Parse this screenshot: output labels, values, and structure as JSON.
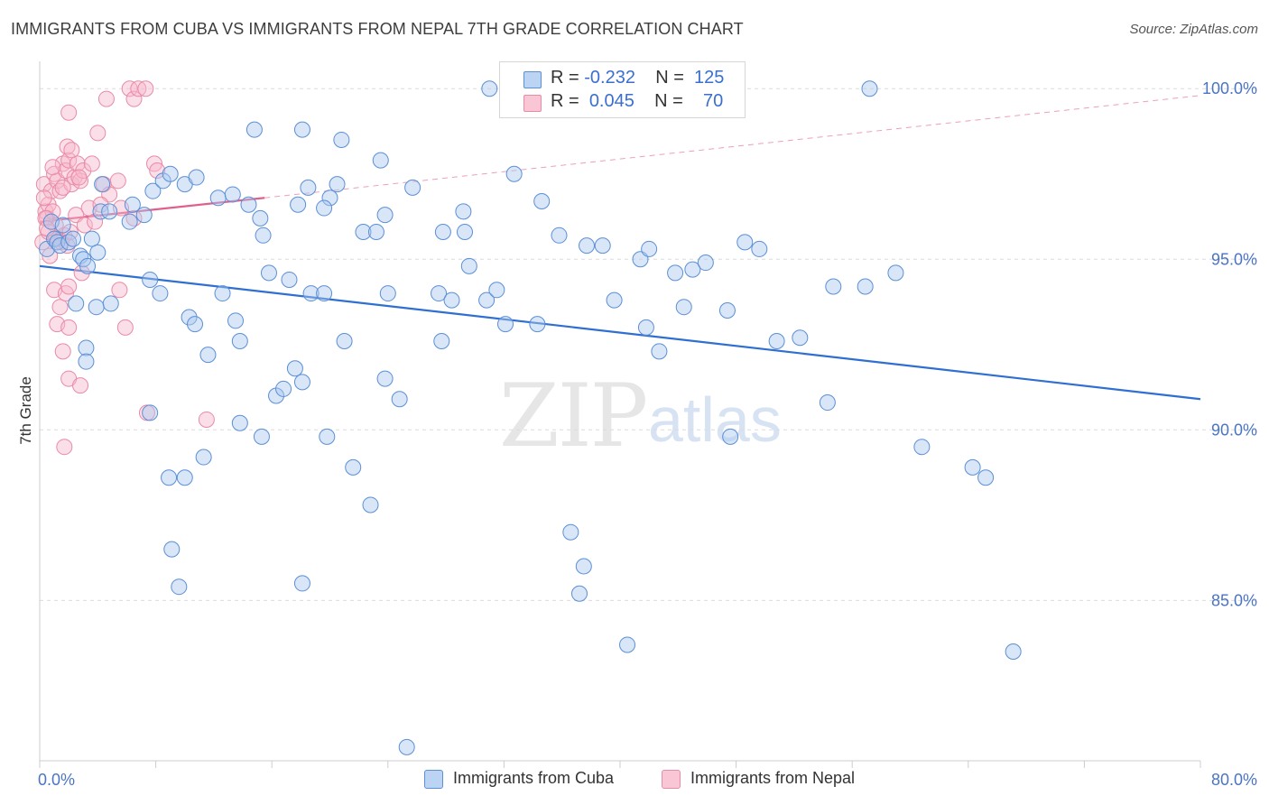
{
  "header": {
    "title": "IMMIGRANTS FROM CUBA VS IMMIGRANTS FROM NEPAL 7TH GRADE CORRELATION CHART",
    "source": "Source: ZipAtlas.com"
  },
  "watermark": {
    "zip": "ZIP",
    "atlas": "atlas"
  },
  "legend": {
    "rows": [
      {
        "r_label": "R = ",
        "r_value": "-0.232",
        "n_label": "N = ",
        "n_value": "125"
      },
      {
        "r_label": "R = ",
        "r_value": "0.045",
        "n_label": "N = ",
        "n_value": "70"
      }
    ]
  },
  "bottom_legend": {
    "cuba": "Immigrants from Cuba",
    "nepal": "Immigrants from Nepal"
  },
  "colors": {
    "cuba_fill": "#a9c8f0",
    "cuba_stroke": "#5b8fd6",
    "cuba_line": "#2f6fd1",
    "nepal_fill": "#f7b9cb",
    "nepal_stroke": "#e98aa6",
    "nepal_line": "#e0608c",
    "tick_text": "#4a74c4",
    "grid": "#dcdcdc"
  },
  "chart_data": {
    "type": "scatter",
    "title": "IMMIGRANTS FROM CUBA VS IMMIGRANTS FROM NEPAL 7TH GRADE CORRELATION CHART",
    "xlabel": "",
    "ylabel": "7th Grade",
    "xlim": [
      0,
      80
    ],
    "ylim": [
      80.3,
      100.8
    ],
    "x_tick_labels": [
      "0.0%",
      "80.0%"
    ],
    "y_ticks": [
      85,
      90,
      95,
      100
    ],
    "y_tick_labels": [
      "85.0%",
      "90.0%",
      "95.0%",
      "100.0%"
    ],
    "grid": true,
    "series": [
      {
        "name": "Immigrants from Cuba",
        "R": -0.232,
        "N": 125,
        "trend": {
          "x": [
            0,
            80
          ],
          "y": [
            94.8,
            90.9
          ],
          "style": "solid"
        },
        "points": [
          [
            0.5,
            95.3
          ],
          [
            0.8,
            96.1
          ],
          [
            1.0,
            95.6
          ],
          [
            1.2,
            95.5
          ],
          [
            1.4,
            95.4
          ],
          [
            1.6,
            96.0
          ],
          [
            2.0,
            95.5
          ],
          [
            2.3,
            95.6
          ],
          [
            2.8,
            95.1
          ],
          [
            3.0,
            95.0
          ],
          [
            3.3,
            94.8
          ],
          [
            3.6,
            95.6
          ],
          [
            4.0,
            95.2
          ],
          [
            4.2,
            96.4
          ],
          [
            4.8,
            96.4
          ],
          [
            4.3,
            97.2
          ],
          [
            6.2,
            96.1
          ],
          [
            6.4,
            96.6
          ],
          [
            7.2,
            96.3
          ],
          [
            7.8,
            97.0
          ],
          [
            8.5,
            97.3
          ],
          [
            9.0,
            97.5
          ],
          [
            10.0,
            97.2
          ],
          [
            10.8,
            97.4
          ],
          [
            12.3,
            96.8
          ],
          [
            13.3,
            96.9
          ],
          [
            14.4,
            96.6
          ],
          [
            15.2,
            96.2
          ],
          [
            15.4,
            95.7
          ],
          [
            14.8,
            98.8
          ],
          [
            17.8,
            96.6
          ],
          [
            18.1,
            98.8
          ],
          [
            18.5,
            97.1
          ],
          [
            20.0,
            96.8
          ],
          [
            20.5,
            97.2
          ],
          [
            19.6,
            96.5
          ],
          [
            20.8,
            98.5
          ],
          [
            22.3,
            95.8
          ],
          [
            23.2,
            95.8
          ],
          [
            23.8,
            96.3
          ],
          [
            23.5,
            97.9
          ],
          [
            25.7,
            97.1
          ],
          [
            27.8,
            95.8
          ],
          [
            29.3,
            95.8
          ],
          [
            29.2,
            96.4
          ],
          [
            29.6,
            94.8
          ],
          [
            32.7,
            97.5
          ],
          [
            31.0,
            100.0
          ],
          [
            34.6,
            96.7
          ],
          [
            35.8,
            95.7
          ],
          [
            37.7,
            95.4
          ],
          [
            38.8,
            95.4
          ],
          [
            41.4,
            95.0
          ],
          [
            42.0,
            95.3
          ],
          [
            43.8,
            94.6
          ],
          [
            45.0,
            94.7
          ],
          [
            45.9,
            94.9
          ],
          [
            48.6,
            95.5
          ],
          [
            49.6,
            95.3
          ],
          [
            57.2,
            100.0
          ],
          [
            2.5,
            93.7
          ],
          [
            3.2,
            92.4
          ],
          [
            3.9,
            93.6
          ],
          [
            4.9,
            93.7
          ],
          [
            7.6,
            94.4
          ],
          [
            8.3,
            94.0
          ],
          [
            10.3,
            93.3
          ],
          [
            10.7,
            93.1
          ],
          [
            11.6,
            92.2
          ],
          [
            12.6,
            94.0
          ],
          [
            13.5,
            93.2
          ],
          [
            13.8,
            92.6
          ],
          [
            15.8,
            94.6
          ],
          [
            17.2,
            94.4
          ],
          [
            18.7,
            94.0
          ],
          [
            19.6,
            94.0
          ],
          [
            21.0,
            92.6
          ],
          [
            24.0,
            94.0
          ],
          [
            27.5,
            94.0
          ],
          [
            28.4,
            93.8
          ],
          [
            30.8,
            93.8
          ],
          [
            31.5,
            94.1
          ],
          [
            32.1,
            93.1
          ],
          [
            34.3,
            93.1
          ],
          [
            39.6,
            93.8
          ],
          [
            41.8,
            93.0
          ],
          [
            42.7,
            92.3
          ],
          [
            44.4,
            93.6
          ],
          [
            47.4,
            93.5
          ],
          [
            50.8,
            92.6
          ],
          [
            52.4,
            92.7
          ],
          [
            3.2,
            92.0
          ],
          [
            7.6,
            90.5
          ],
          [
            13.8,
            90.2
          ],
          [
            15.3,
            89.8
          ],
          [
            16.3,
            91.0
          ],
          [
            16.8,
            91.2
          ],
          [
            17.6,
            91.8
          ],
          [
            18.1,
            91.4
          ],
          [
            19.8,
            89.8
          ],
          [
            21.6,
            88.9
          ],
          [
            23.8,
            91.5
          ],
          [
            24.8,
            90.9
          ],
          [
            27.7,
            92.6
          ],
          [
            11.3,
            89.2
          ],
          [
            10.0,
            88.6
          ],
          [
            8.9,
            88.6
          ],
          [
            22.8,
            87.8
          ],
          [
            36.6,
            87.0
          ],
          [
            37.5,
            86.0
          ],
          [
            9.1,
            86.5
          ],
          [
            9.6,
            85.4
          ],
          [
            18.1,
            85.5
          ],
          [
            37.2,
            85.2
          ],
          [
            40.5,
            83.7
          ],
          [
            47.6,
            89.8
          ],
          [
            54.3,
            90.8
          ],
          [
            60.8,
            89.5
          ],
          [
            64.3,
            88.9
          ],
          [
            65.2,
            88.6
          ],
          [
            67.1,
            83.5
          ],
          [
            56.9,
            94.2
          ],
          [
            59.0,
            94.6
          ],
          [
            25.3,
            80.7
          ],
          [
            54.7,
            94.2
          ]
        ]
      },
      {
        "name": "Immigrants from Nepal",
        "R": 0.045,
        "N": 70,
        "trend": {
          "x": [
            0,
            15.5
          ],
          "y": [
            96.1,
            96.8
          ],
          "style": "solid",
          "extended": {
            "x": [
              15.5,
              80
            ],
            "y": [
              96.8,
              99.8
            ],
            "style": "dashed"
          }
        },
        "points": [
          [
            0.2,
            95.5
          ],
          [
            0.4,
            96.4
          ],
          [
            0.6,
            96.6
          ],
          [
            0.3,
            97.2
          ],
          [
            0.8,
            97.0
          ],
          [
            1.0,
            97.5
          ],
          [
            1.2,
            97.3
          ],
          [
            1.4,
            97.0
          ],
          [
            1.6,
            97.8
          ],
          [
            1.8,
            97.6
          ],
          [
            2.0,
            97.9
          ],
          [
            2.2,
            97.2
          ],
          [
            2.4,
            97.4
          ],
          [
            2.6,
            97.8
          ],
          [
            2.8,
            97.3
          ],
          [
            3.0,
            97.6
          ],
          [
            1.9,
            98.3
          ],
          [
            2.2,
            98.2
          ],
          [
            2.0,
            99.3
          ],
          [
            4.0,
            98.7
          ],
          [
            4.6,
            99.7
          ],
          [
            6.2,
            100.0
          ],
          [
            6.5,
            99.7
          ],
          [
            6.8,
            100.0
          ],
          [
            7.3,
            100.0
          ],
          [
            3.6,
            97.8
          ],
          [
            4.4,
            97.2
          ],
          [
            5.4,
            97.3
          ],
          [
            0.5,
            96.2
          ],
          [
            0.9,
            96.4
          ],
          [
            1.1,
            96.0
          ],
          [
            1.3,
            95.6
          ],
          [
            1.5,
            95.5
          ],
          [
            1.7,
            95.7
          ],
          [
            1.9,
            95.4
          ],
          [
            2.1,
            95.8
          ],
          [
            0.7,
            95.1
          ],
          [
            0.3,
            96.8
          ],
          [
            1.0,
            94.1
          ],
          [
            1.4,
            93.6
          ],
          [
            1.8,
            94.0
          ],
          [
            2.0,
            94.2
          ],
          [
            1.2,
            93.1
          ],
          [
            2.0,
            93.0
          ],
          [
            1.6,
            92.3
          ],
          [
            2.0,
            91.5
          ],
          [
            2.8,
            91.3
          ],
          [
            1.7,
            89.5
          ],
          [
            5.5,
            94.1
          ],
          [
            5.9,
            93.0
          ],
          [
            7.4,
            90.5
          ],
          [
            11.5,
            90.3
          ],
          [
            2.9,
            94.6
          ],
          [
            3.4,
            96.5
          ],
          [
            4.8,
            96.9
          ],
          [
            5.6,
            96.5
          ],
          [
            6.5,
            96.2
          ],
          [
            7.9,
            97.8
          ],
          [
            8.1,
            97.6
          ],
          [
            0.4,
            96.2
          ],
          [
            0.6,
            95.8
          ],
          [
            1.1,
            95.6
          ],
          [
            2.5,
            96.3
          ],
          [
            3.1,
            96.0
          ],
          [
            3.8,
            96.1
          ],
          [
            4.2,
            96.6
          ],
          [
            0.9,
            97.7
          ],
          [
            0.5,
            95.9
          ],
          [
            1.6,
            97.1
          ],
          [
            2.7,
            97.4
          ]
        ]
      }
    ]
  }
}
